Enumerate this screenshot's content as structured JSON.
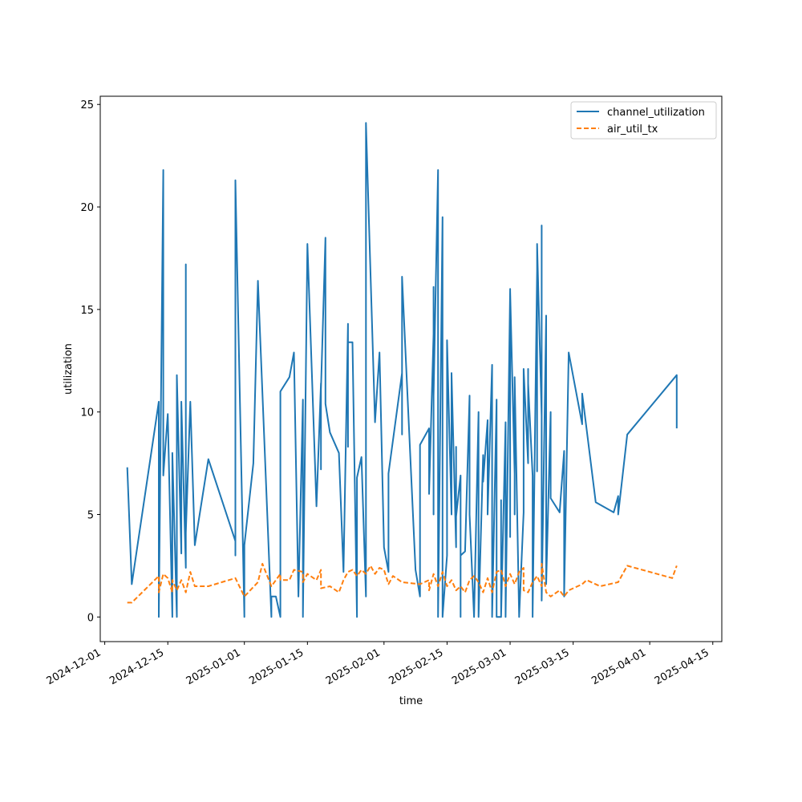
{
  "chart_data": {
    "type": "line",
    "xlabel": "time",
    "ylabel": "utilization",
    "x_is_date": true,
    "xlim": [
      "2024-11-30",
      "2025-04-17"
    ],
    "ylim": [
      -1.2,
      25.4
    ],
    "x_ticks": [
      "2024-12-01",
      "2024-12-15",
      "2025-01-01",
      "2025-01-15",
      "2025-02-01",
      "2025-02-15",
      "2025-03-01",
      "2025-03-15",
      "2025-04-01",
      "2025-04-15"
    ],
    "y_ticks": [
      0,
      5,
      10,
      15,
      20,
      25
    ],
    "grid": false,
    "legend": {
      "position": "upper right"
    },
    "series": [
      {
        "name": "channel_utilization",
        "color": "#1f77b4",
        "dash": "solid",
        "points": [
          [
            "2024-12-06",
            7.3
          ],
          [
            "2024-12-07",
            1.6
          ],
          [
            "2024-12-13",
            10.5
          ],
          [
            "2024-12-13",
            0.0
          ],
          [
            "2024-12-14",
            21.8
          ],
          [
            "2024-12-14",
            6.9
          ],
          [
            "2024-12-15",
            9.9
          ],
          [
            "2024-12-16",
            0.0
          ],
          [
            "2024-12-16",
            8.0
          ],
          [
            "2024-12-17",
            0.0
          ],
          [
            "2024-12-17",
            11.8
          ],
          [
            "2024-12-18",
            3.1
          ],
          [
            "2024-12-18",
            10.5
          ],
          [
            "2024-12-19",
            2.4
          ],
          [
            "2024-12-19",
            17.2
          ],
          [
            "2024-12-19",
            4.1
          ],
          [
            "2024-12-20",
            10.5
          ],
          [
            "2024-12-21",
            3.5
          ],
          [
            "2024-12-24",
            7.7
          ],
          [
            "2024-12-30",
            3.7
          ],
          [
            "2024-12-30",
            3.0
          ],
          [
            "2024-12-30",
            21.3
          ],
          [
            "2025-01-01",
            0.0
          ],
          [
            "2025-01-01",
            3.5
          ],
          [
            "2025-01-03",
            7.5
          ],
          [
            "2025-01-04",
            16.4
          ],
          [
            "2025-01-07",
            0.0
          ],
          [
            "2025-01-07",
            1.0
          ],
          [
            "2025-01-08",
            1.0
          ],
          [
            "2025-01-09",
            0.0
          ],
          [
            "2025-01-09",
            7.0
          ],
          [
            "2025-01-09",
            5.5
          ],
          [
            "2025-01-09",
            11.0
          ],
          [
            "2025-01-11",
            11.7
          ],
          [
            "2025-01-12",
            12.9
          ],
          [
            "2025-01-13",
            1.0
          ],
          [
            "2025-01-14",
            10.6
          ],
          [
            "2025-01-14",
            0.0
          ],
          [
            "2025-01-15",
            18.2
          ],
          [
            "2025-01-17",
            5.4
          ],
          [
            "2025-01-18",
            11.4
          ],
          [
            "2025-01-18",
            7.2
          ],
          [
            "2025-01-18",
            11.1
          ],
          [
            "2025-01-19",
            18.5
          ],
          [
            "2025-01-19",
            10.4
          ],
          [
            "2025-01-20",
            9.0
          ],
          [
            "2025-01-22",
            8.0
          ],
          [
            "2025-01-23",
            2.2
          ],
          [
            "2025-01-24",
            14.3
          ],
          [
            "2025-01-24",
            8.3
          ],
          [
            "2025-01-24",
            13.4
          ],
          [
            "2025-01-25",
            13.4
          ],
          [
            "2025-01-25",
            13.4
          ],
          [
            "2025-01-26",
            0.0
          ],
          [
            "2025-01-26",
            6.8
          ],
          [
            "2025-01-27",
            7.8
          ],
          [
            "2025-01-28",
            1.0
          ],
          [
            "2025-01-28",
            24.1
          ],
          [
            "2025-01-30",
            9.5
          ],
          [
            "2025-01-31",
            12.9
          ],
          [
            "2025-02-01",
            3.4
          ],
          [
            "2025-02-02",
            2.2
          ],
          [
            "2025-02-02",
            7.0
          ],
          [
            "2025-02-05",
            11.9
          ],
          [
            "2025-02-05",
            8.9
          ],
          [
            "2025-02-05",
            16.6
          ],
          [
            "2025-02-08",
            2.3
          ],
          [
            "2025-02-09",
            1.0
          ],
          [
            "2025-02-09",
            8.4
          ],
          [
            "2025-02-11",
            9.2
          ],
          [
            "2025-02-11",
            6.0
          ],
          [
            "2025-02-12",
            13.8
          ],
          [
            "2025-02-12",
            5.0
          ],
          [
            "2025-02-12",
            16.1
          ],
          [
            "2025-02-12",
            10.8
          ],
          [
            "2025-02-13",
            21.8
          ],
          [
            "2025-02-13",
            0.0
          ],
          [
            "2025-02-14",
            19.5
          ],
          [
            "2025-02-14",
            0.0
          ],
          [
            "2025-02-15",
            3.0
          ],
          [
            "2025-02-15",
            13.5
          ],
          [
            "2025-02-16",
            5.0
          ],
          [
            "2025-02-16",
            11.9
          ],
          [
            "2025-02-17",
            3.4
          ],
          [
            "2025-02-17",
            8.3
          ],
          [
            "2025-02-17",
            4.9
          ],
          [
            "2025-02-18",
            6.9
          ],
          [
            "2025-02-18",
            0.0
          ],
          [
            "2025-02-18",
            3.0
          ],
          [
            "2025-02-19",
            3.2
          ],
          [
            "2025-02-20",
            10.8
          ],
          [
            "2025-02-20",
            5.0
          ],
          [
            "2025-02-21",
            0.0
          ],
          [
            "2025-02-22",
            10.0
          ],
          [
            "2025-02-22",
            0.0
          ],
          [
            "2025-02-23",
            7.9
          ],
          [
            "2025-02-23",
            6.6
          ],
          [
            "2025-02-24",
            9.6
          ],
          [
            "2025-02-24",
            5.0
          ],
          [
            "2025-02-25",
            12.3
          ],
          [
            "2025-02-25",
            0.0
          ],
          [
            "2025-02-26",
            10.6
          ],
          [
            "2025-02-26",
            0.0
          ],
          [
            "2025-02-27",
            0.0
          ],
          [
            "2025-02-27",
            3.4
          ],
          [
            "2025-02-27",
            5.7
          ],
          [
            "2025-02-27",
            0.0
          ],
          [
            "2025-02-28",
            9.5
          ],
          [
            "2025-02-28",
            0.0
          ],
          [
            "2025-03-01",
            16.0
          ],
          [
            "2025-03-01",
            3.9
          ],
          [
            "2025-03-01",
            15.9
          ],
          [
            "2025-03-02",
            7.0
          ],
          [
            "2025-03-02",
            5.0
          ],
          [
            "2025-03-02",
            11.7
          ],
          [
            "2025-03-03",
            0.0
          ],
          [
            "2025-03-04",
            5.1
          ],
          [
            "2025-03-04",
            12.1
          ],
          [
            "2025-03-05",
            7.5
          ],
          [
            "2025-03-05",
            12.1
          ],
          [
            "2025-03-05",
            9.2
          ],
          [
            "2025-03-05",
            11.4
          ],
          [
            "2025-03-06",
            6.9
          ],
          [
            "2025-03-06",
            0.0
          ],
          [
            "2025-03-07",
            16.9
          ],
          [
            "2025-03-07",
            7.1
          ],
          [
            "2025-03-07",
            18.2
          ],
          [
            "2025-03-08",
            9.8
          ],
          [
            "2025-03-08",
            19.1
          ],
          [
            "2025-03-08",
            3.1
          ],
          [
            "2025-03-08",
            17.4
          ],
          [
            "2025-03-08",
            0.8
          ],
          [
            "2025-03-09",
            14.7
          ],
          [
            "2025-03-09",
            1.6
          ],
          [
            "2025-03-10",
            10.0
          ],
          [
            "2025-03-10",
            5.8
          ],
          [
            "2025-03-12",
            5.1
          ],
          [
            "2025-03-13",
            8.1
          ],
          [
            "2025-03-13",
            1.0
          ],
          [
            "2025-03-14",
            12.9
          ],
          [
            "2025-03-17",
            9.4
          ],
          [
            "2025-03-17",
            10.9
          ],
          [
            "2025-03-20",
            5.6
          ],
          [
            "2025-03-24",
            5.1
          ],
          [
            "2025-03-25",
            5.9
          ],
          [
            "2025-03-25",
            5.0
          ],
          [
            "2025-03-27",
            8.9
          ],
          [
            "2025-04-07",
            11.8
          ],
          [
            "2025-04-07",
            9.2
          ]
        ]
      },
      {
        "name": "air_util_tx",
        "color": "#ff7f0e",
        "dash": "dashed",
        "points": [
          [
            "2024-12-06",
            0.7
          ],
          [
            "2024-12-07",
            0.7
          ],
          [
            "2024-12-13",
            2.0
          ],
          [
            "2024-12-13",
            1.2
          ],
          [
            "2024-12-14",
            2.1
          ],
          [
            "2024-12-15",
            1.9
          ],
          [
            "2024-12-16",
            1.2
          ],
          [
            "2024-12-16",
            1.8
          ],
          [
            "2024-12-17",
            1.3
          ],
          [
            "2024-12-18",
            1.8
          ],
          [
            "2024-12-19",
            1.2
          ],
          [
            "2024-12-20",
            2.2
          ],
          [
            "2024-12-21",
            1.5
          ],
          [
            "2024-12-24",
            1.5
          ],
          [
            "2024-12-30",
            1.9
          ],
          [
            "2025-01-01",
            1.0
          ],
          [
            "2025-01-04",
            1.7
          ],
          [
            "2025-01-05",
            2.6
          ],
          [
            "2025-01-07",
            1.5
          ],
          [
            "2025-01-09",
            2.1
          ],
          [
            "2025-01-09",
            1.8
          ],
          [
            "2025-01-11",
            1.8
          ],
          [
            "2025-01-12",
            2.3
          ],
          [
            "2025-01-14",
            2.2
          ],
          [
            "2025-01-14",
            1.7
          ],
          [
            "2025-01-15",
            2.1
          ],
          [
            "2025-01-17",
            1.8
          ],
          [
            "2025-01-18",
            2.3
          ],
          [
            "2025-01-18",
            1.4
          ],
          [
            "2025-01-20",
            1.5
          ],
          [
            "2025-01-22",
            1.2
          ],
          [
            "2025-01-23",
            1.8
          ],
          [
            "2025-01-24",
            2.2
          ],
          [
            "2025-01-25",
            2.3
          ],
          [
            "2025-01-26",
            2.0
          ],
          [
            "2025-01-27",
            2.3
          ],
          [
            "2025-01-28",
            2.1
          ],
          [
            "2025-01-29",
            2.5
          ],
          [
            "2025-01-30",
            2.1
          ],
          [
            "2025-01-31",
            2.4
          ],
          [
            "2025-02-01",
            2.3
          ],
          [
            "2025-02-02",
            1.6
          ],
          [
            "2025-02-03",
            2.0
          ],
          [
            "2025-02-05",
            1.7
          ],
          [
            "2025-02-09",
            1.6
          ],
          [
            "2025-02-11",
            1.8
          ],
          [
            "2025-02-11",
            1.3
          ],
          [
            "2025-02-12",
            2.1
          ],
          [
            "2025-02-13",
            1.5
          ],
          [
            "2025-02-14",
            2.2
          ],
          [
            "2025-02-15",
            1.5
          ],
          [
            "2025-02-16",
            1.8
          ],
          [
            "2025-02-17",
            1.3
          ],
          [
            "2025-02-18",
            1.5
          ],
          [
            "2025-02-19",
            1.2
          ],
          [
            "2025-02-20",
            1.8
          ],
          [
            "2025-02-21",
            2.0
          ],
          [
            "2025-02-22",
            1.7
          ],
          [
            "2025-02-23",
            1.2
          ],
          [
            "2025-02-24",
            1.9
          ],
          [
            "2025-02-25",
            1.2
          ],
          [
            "2025-02-26",
            2.2
          ],
          [
            "2025-02-27",
            2.3
          ],
          [
            "2025-02-28",
            1.5
          ],
          [
            "2025-03-01",
            2.1
          ],
          [
            "2025-03-02",
            1.6
          ],
          [
            "2025-03-03",
            2.2
          ],
          [
            "2025-03-04",
            2.4
          ],
          [
            "2025-03-04",
            1.3
          ],
          [
            "2025-03-05",
            1.2
          ],
          [
            "2025-03-06",
            1.7
          ],
          [
            "2025-03-07",
            2.0
          ],
          [
            "2025-03-08",
            1.5
          ],
          [
            "2025-03-08",
            2.6
          ],
          [
            "2025-03-09",
            1.2
          ],
          [
            "2025-03-10",
            1.0
          ],
          [
            "2025-03-12",
            1.3
          ],
          [
            "2025-03-13",
            1.0
          ],
          [
            "2025-03-14",
            1.3
          ],
          [
            "2025-03-17",
            1.6
          ],
          [
            "2025-03-18",
            1.8
          ],
          [
            "2025-03-21",
            1.5
          ],
          [
            "2025-03-25",
            1.7
          ],
          [
            "2025-03-27",
            2.5
          ],
          [
            "2025-04-06",
            1.9
          ],
          [
            "2025-04-07",
            2.5
          ]
        ]
      }
    ]
  }
}
